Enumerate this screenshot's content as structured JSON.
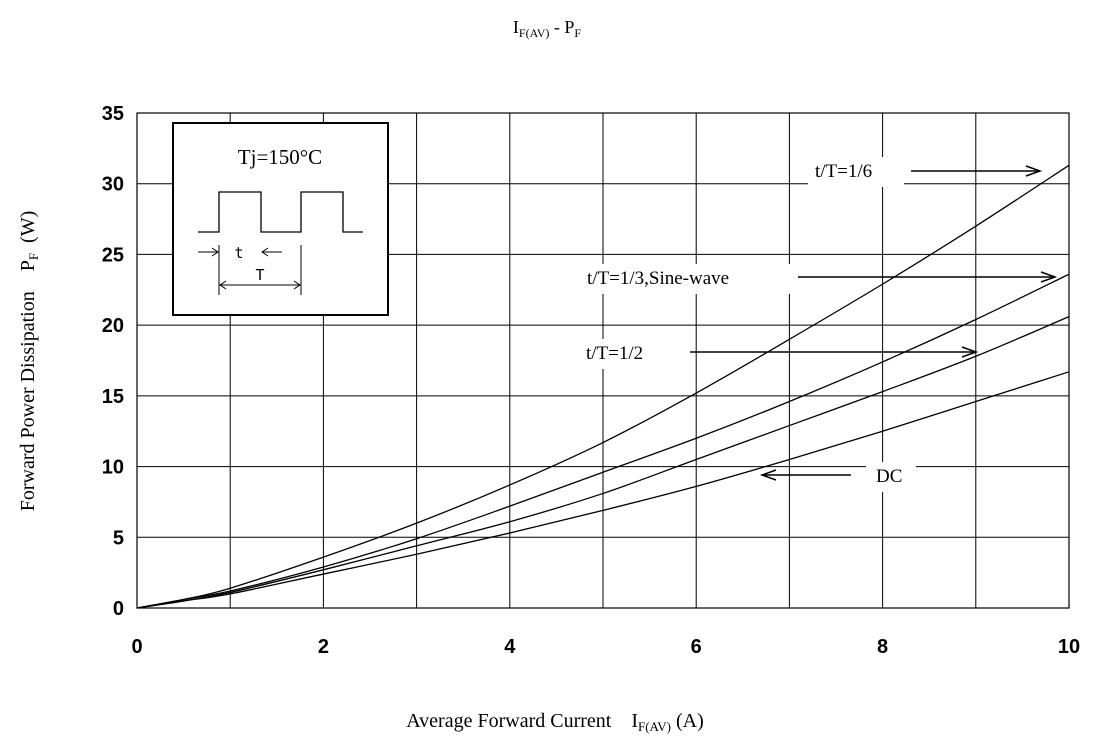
{
  "chart_data": {
    "type": "line",
    "title": {
      "main": "I",
      "main_sub": "F(AV)",
      "sep": " - ",
      "second": "P",
      "second_sub": "F"
    },
    "xlabel": {
      "text": "Average Forward Current    I",
      "sub": "F(AV)",
      "unit": " (A)"
    },
    "ylabel": {
      "text": "Forward Power Dissipation    P",
      "sub": "F",
      "unit": "  (W)"
    },
    "xlim": [
      0,
      10
    ],
    "ylim": [
      0,
      35
    ],
    "x_ticks": [
      "0",
      "2",
      "4",
      "6",
      "8",
      "10"
    ],
    "y_ticks": [
      "0",
      "5",
      "10",
      "15",
      "20",
      "25",
      "30",
      "35"
    ],
    "grid": true,
    "series": [
      {
        "name": "t/T=1/6",
        "x": [
          0,
          0.5,
          1,
          2,
          3,
          4,
          5,
          6,
          7,
          8,
          9,
          10
        ],
        "y": [
          0,
          0.6,
          1.4,
          3.6,
          6.0,
          8.7,
          11.7,
          15.2,
          19.0,
          22.9,
          27.0,
          31.3
        ]
      },
      {
        "name": "t/T=1/3,Sine-wave",
        "x": [
          0,
          0.5,
          1,
          2,
          3,
          4,
          5,
          6,
          7,
          8,
          9,
          10
        ],
        "y": [
          0,
          0.6,
          1.2,
          2.9,
          4.9,
          7.2,
          9.6,
          12.0,
          14.6,
          17.4,
          20.4,
          23.6
        ]
      },
      {
        "name": "t/T=1/2",
        "x": [
          0,
          0.5,
          1,
          2,
          3,
          4,
          5,
          6,
          7,
          8,
          9,
          10
        ],
        "y": [
          0,
          0.5,
          1.1,
          2.7,
          4.4,
          6.1,
          8.1,
          10.5,
          12.9,
          15.3,
          17.8,
          20.6
        ]
      },
      {
        "name": "DC",
        "x": [
          0,
          0.5,
          1,
          2,
          3,
          4,
          5,
          6,
          7,
          8,
          9,
          10
        ],
        "y": [
          0,
          0.5,
          1.0,
          2.4,
          3.8,
          5.3,
          6.9,
          8.6,
          10.5,
          12.5,
          14.6,
          16.7
        ]
      }
    ],
    "annotations": [
      {
        "name": "t/T=1/6",
        "text": "t/T=1/6",
        "arrow_dir": "right"
      },
      {
        "name": "t/T=1/3,Sine-wave",
        "text": "t/T=1/3,Sine-wave",
        "arrow_dir": "right"
      },
      {
        "name": "t/T=1/2",
        "text": "t/T=1/2",
        "arrow_dir": "right"
      },
      {
        "name": "DC",
        "text": "DC",
        "arrow_dir": "left"
      }
    ],
    "inset": {
      "condition": "Tj=150°C",
      "t_label": "t",
      "T_label": "T"
    }
  }
}
